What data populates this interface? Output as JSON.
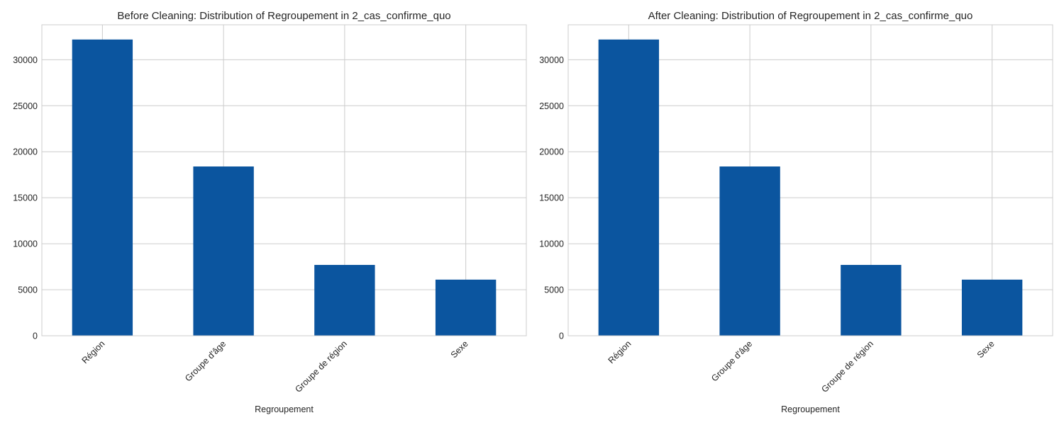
{
  "chart_data": [
    {
      "type": "bar",
      "title": "Before Cleaning: Distribution of Regroupement in 2_cas_confirme_quo",
      "xlabel": "Regroupement",
      "ylabel": "",
      "categories": [
        "Région",
        "Groupe d'âge",
        "Groupe de région",
        "Sexe"
      ],
      "values": [
        32200,
        18400,
        7700,
        6100
      ],
      "ylim": [
        0,
        33800
      ],
      "yticks": [
        0,
        5000,
        10000,
        15000,
        20000,
        25000,
        30000
      ],
      "grid": true,
      "bar_color": "#0b559f"
    },
    {
      "type": "bar",
      "title": "After Cleaning: Distribution of Regroupement in 2_cas_confirme_quo",
      "xlabel": "Regroupement",
      "ylabel": "",
      "categories": [
        "Région",
        "Groupe d'âge",
        "Groupe de région",
        "Sexe"
      ],
      "values": [
        32200,
        18400,
        7700,
        6100
      ],
      "ylim": [
        0,
        33800
      ],
      "yticks": [
        0,
        5000,
        10000,
        15000,
        20000,
        25000,
        30000
      ],
      "grid": true,
      "bar_color": "#0b559f"
    }
  ]
}
